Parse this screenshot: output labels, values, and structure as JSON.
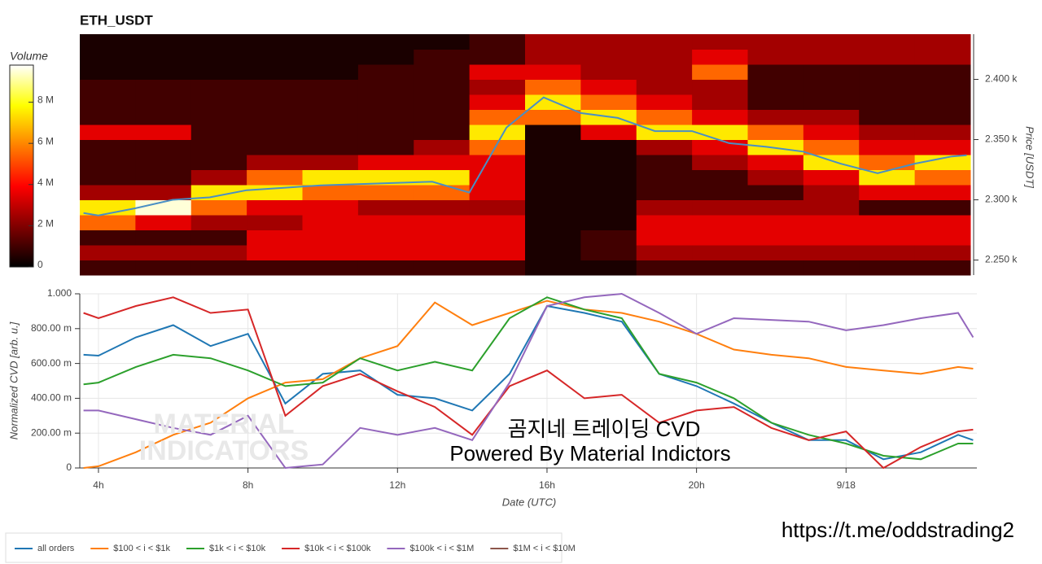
{
  "chart_data": [
    {
      "type": "heatmap",
      "title": "ETH_USDT",
      "colorbar_label": "Volume",
      "y_label": "Price [USDT]",
      "colormap": "hot",
      "xlim": [
        3.5,
        27.5
      ],
      "ylim": [
        2237.5,
        2437.5
      ],
      "yticks": [
        {
          "value": 2250,
          "label": "2.250 k"
        },
        {
          "value": 2300,
          "label": "2.300 k"
        },
        {
          "value": 2350,
          "label": "2.350 k"
        },
        {
          "value": 2400,
          "label": "2.400 k"
        }
      ],
      "clim": [
        0,
        9800000
      ],
      "cticks": [
        0,
        {
          "value": 2000000,
          "label": "2 M"
        },
        {
          "value": 4000000,
          "label": "4 M"
        },
        {
          "value": 6000000,
          "label": "6 M"
        },
        {
          "value": 8000000,
          "label": "8 M"
        }
      ],
      "x_edges": [
        3.5,
        5,
        6.5,
        8,
        9.5,
        11,
        12.5,
        14,
        15.5,
        17,
        18.5,
        20,
        21.5,
        23,
        24.5,
        26,
        27.5
      ],
      "y_edges": [
        2237.5,
        2250,
        2262.5,
        2275,
        2287.5,
        2300,
        2312.5,
        2325,
        2337.5,
        2350,
        2362.5,
        2375,
        2387.5,
        2400,
        2412.5,
        2425,
        2437.5
      ],
      "z": [
        [
          1000000,
          1000000,
          1000000,
          1000000,
          1000000,
          1000000,
          1000000,
          1000000,
          400000,
          400000,
          1000000,
          1000000,
          1000000,
          1000000,
          1000000,
          1000000
        ],
        [
          2500000,
          2500000,
          2500000,
          3500000,
          3500000,
          3500000,
          3500000,
          3500000,
          400000,
          1000000,
          2500000,
          2500000,
          2500000,
          2500000,
          2500000,
          2500000
        ],
        [
          1000000,
          1000000,
          1000000,
          3500000,
          3500000,
          3500000,
          3500000,
          3500000,
          400000,
          1000000,
          3500000,
          3500000,
          3500000,
          3500000,
          3500000,
          3500000
        ],
        [
          5500000,
          3500000,
          2500000,
          2500000,
          3500000,
          3500000,
          3500000,
          3500000,
          400000,
          400000,
          3500000,
          3500000,
          3500000,
          3500000,
          3500000,
          3500000
        ],
        [
          7500000,
          9500000,
          5500000,
          3500000,
          3500000,
          2500000,
          2500000,
          2500000,
          400000,
          400000,
          2500000,
          2500000,
          2500000,
          2500000,
          1000000,
          1000000
        ],
        [
          2500000,
          2500000,
          7500000,
          7500000,
          5500000,
          5500000,
          5500000,
          3500000,
          400000,
          400000,
          1000000,
          1000000,
          1000000,
          2500000,
          3500000,
          3500000
        ],
        [
          1000000,
          1000000,
          2500000,
          5500000,
          7500000,
          7500000,
          7500000,
          3500000,
          400000,
          400000,
          1000000,
          1000000,
          2500000,
          3500000,
          7500000,
          5500000
        ],
        [
          1000000,
          1000000,
          1000000,
          2500000,
          2500000,
          3500000,
          3500000,
          3500000,
          400000,
          400000,
          1000000,
          2500000,
          3500000,
          7500000,
          5500000,
          7500000
        ],
        [
          1000000,
          1000000,
          1000000,
          1000000,
          1000000,
          1000000,
          2500000,
          5500000,
          400000,
          400000,
          2500000,
          3500000,
          7500000,
          5500000,
          3500000,
          3500000
        ],
        [
          3500000,
          3500000,
          1000000,
          1000000,
          1000000,
          1000000,
          1000000,
          7500000,
          400000,
          3500000,
          7500000,
          7500000,
          5500000,
          3500000,
          2500000,
          2500000
        ],
        [
          1000000,
          1000000,
          1000000,
          1000000,
          1000000,
          1000000,
          1000000,
          5500000,
          5500000,
          7500000,
          5500000,
          3500000,
          2500000,
          2500000,
          1000000,
          1000000
        ],
        [
          1000000,
          1000000,
          1000000,
          1000000,
          1000000,
          1000000,
          1000000,
          3500000,
          7500000,
          5500000,
          3500000,
          2500000,
          1000000,
          1000000,
          1000000,
          1000000
        ],
        [
          1000000,
          1000000,
          1000000,
          1000000,
          1000000,
          1000000,
          1000000,
          2500000,
          5500000,
          3500000,
          2500000,
          2500000,
          1000000,
          1000000,
          1000000,
          1000000
        ],
        [
          400000,
          400000,
          400000,
          400000,
          400000,
          1000000,
          1000000,
          3500000,
          3500000,
          2500000,
          2500000,
          5500000,
          1000000,
          1000000,
          1000000,
          1000000
        ],
        [
          400000,
          400000,
          400000,
          400000,
          400000,
          400000,
          1000000,
          1000000,
          2500000,
          2500000,
          2500000,
          3500000,
          2500000,
          2500000,
          2500000,
          2500000
        ],
        [
          400000,
          400000,
          400000,
          400000,
          400000,
          400000,
          400000,
          1000000,
          2500000,
          2500000,
          2500000,
          2500000,
          2500000,
          2500000,
          2500000,
          2500000
        ]
      ],
      "line": {
        "color": "#4a8fc4",
        "x": [
          3.6,
          4,
          5,
          6,
          7,
          8,
          9,
          10,
          11,
          12,
          13,
          14,
          15,
          16,
          17,
          18,
          19,
          20,
          21,
          22,
          23,
          24,
          25,
          26,
          27,
          27.4
        ],
        "values": [
          2289,
          2287,
          2293,
          2300,
          2302,
          2308,
          2310,
          2312,
          2313,
          2314,
          2315,
          2306,
          2360,
          2385,
          2372,
          2368,
          2357,
          2357,
          2347,
          2344,
          2340,
          2330,
          2322,
          2330,
          2336,
          2337
        ]
      }
    },
    {
      "type": "line",
      "x_label": "Date (UTC)",
      "y_label": "Normalized CVD [arb. u.]",
      "grid": true,
      "legend": "bottom-left",
      "xlim": [
        3.5,
        27.5
      ],
      "ylim": [
        0,
        1
      ],
      "xticks": [
        {
          "value": 4,
          "label": "4h"
        },
        {
          "value": 8,
          "label": "8h"
        },
        {
          "value": 12,
          "label": "12h"
        },
        {
          "value": 16,
          "label": "16h"
        },
        {
          "value": 20,
          "label": "20h"
        },
        {
          "value": 24,
          "label": "9/18"
        }
      ],
      "yticks": [
        0,
        {
          "value": 0.2,
          "label": "200.00 m"
        },
        {
          "value": 0.4,
          "label": "400.00 m"
        },
        {
          "value": 0.6,
          "label": "600.00 m"
        },
        {
          "value": 0.8,
          "label": "800.00 m"
        },
        {
          "value": 1,
          "label": "1.000"
        }
      ],
      "x": [
        3.6,
        4,
        5,
        6,
        7,
        8,
        9,
        10,
        11,
        12,
        13,
        14,
        15,
        16,
        17,
        18,
        19,
        20,
        21,
        22,
        23,
        24,
        25,
        26,
        27,
        27.4
      ],
      "series": [
        {
          "name": "all orders",
          "color": "#1f77b4",
          "values": [
            0.65,
            0.645,
            0.75,
            0.82,
            0.7,
            0.77,
            0.37,
            0.54,
            0.56,
            0.42,
            0.4,
            0.33,
            0.54,
            0.93,
            0.89,
            0.84,
            0.54,
            0.47,
            0.37,
            0.26,
            0.16,
            0.16,
            0.05,
            0.09,
            0.19,
            0.16
          ]
        },
        {
          "name": "$100 < i < $1k",
          "color": "#ff7f0e",
          "values": [
            0,
            0.01,
            0.09,
            0.19,
            0.26,
            0.4,
            0.49,
            0.51,
            0.63,
            0.7,
            0.95,
            0.82,
            0.89,
            0.96,
            0.91,
            0.89,
            0.84,
            0.77,
            0.68,
            0.65,
            0.63,
            0.58,
            0.56,
            0.54,
            0.58,
            0.57
          ]
        },
        {
          "name": "$1k < i < $10k",
          "color": "#2ca02c",
          "values": [
            0.48,
            0.49,
            0.58,
            0.65,
            0.63,
            0.56,
            0.47,
            0.49,
            0.63,
            0.56,
            0.61,
            0.56,
            0.86,
            0.98,
            0.91,
            0.86,
            0.54,
            0.49,
            0.4,
            0.26,
            0.19,
            0.14,
            0.07,
            0.05,
            0.14,
            0.14
          ]
        },
        {
          "name": "$10k < i < $100k",
          "color": "#d62728",
          "values": [
            0.89,
            0.86,
            0.93,
            0.98,
            0.89,
            0.91,
            0.3,
            0.47,
            0.54,
            0.44,
            0.35,
            0.19,
            0.47,
            0.56,
            0.4,
            0.42,
            0.26,
            0.33,
            0.35,
            0.23,
            0.16,
            0.21,
            0,
            0.12,
            0.21,
            0.22
          ]
        },
        {
          "name": "$100k < i < $1M",
          "color": "#9467bd",
          "values": [
            0.33,
            0.33,
            0.28,
            0.23,
            0.19,
            0.3,
            0,
            0.02,
            0.23,
            0.19,
            0.23,
            0.16,
            0.49,
            0.93,
            0.98,
            1,
            0.89,
            0.77,
            0.86,
            0.85,
            0.84,
            0.79,
            0.82,
            0.86,
            0.89,
            0.75
          ]
        },
        {
          "name": "$1M < i < $10M",
          "color": "#8c564b",
          "values": [
            null,
            null,
            null,
            null,
            null,
            null,
            null,
            null,
            null,
            null,
            null,
            null,
            null,
            null,
            null,
            null,
            null,
            null,
            null,
            null,
            null,
            null,
            null,
            null,
            null,
            null
          ]
        }
      ]
    }
  ],
  "watermarks": {
    "logo_top": "MATERIAL",
    "logo_bottom": "INDICATORS",
    "caption": "곰지네 트레이딩 CVD",
    "powered": "Powered By Material Indictors",
    "link": "https://t.me/oddstrading2"
  }
}
